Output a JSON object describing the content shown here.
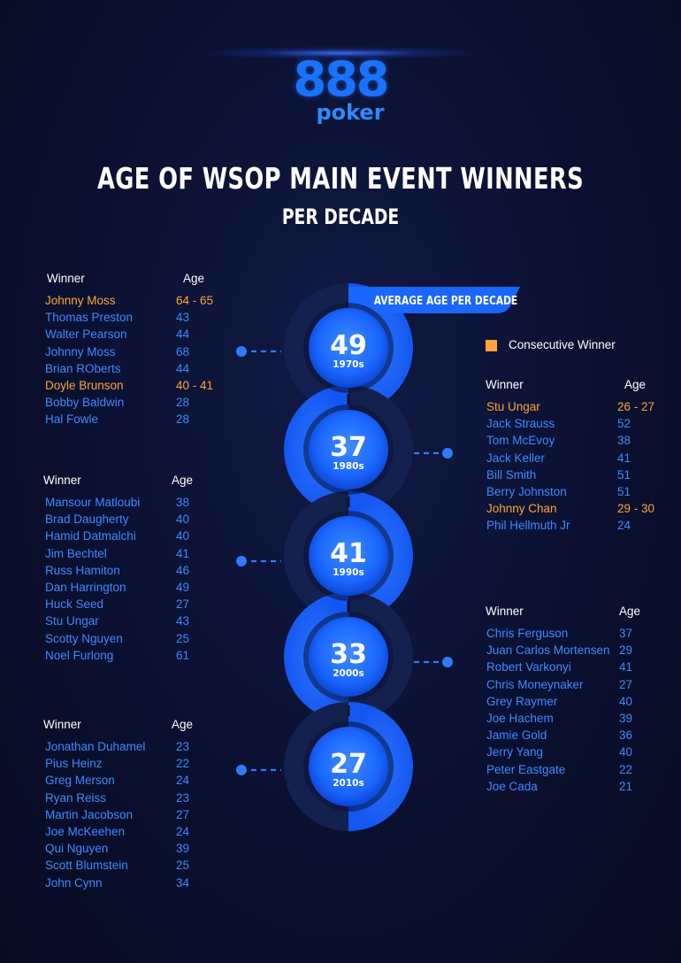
{
  "brand": {
    "logo_digits": "888",
    "logo_word": "poker"
  },
  "title": "AGE OF WSOP MAIN EVENT WINNERS",
  "subtitle": "PER DECADE",
  "legend": {
    "label": "Consecutive Winner",
    "color": "#ffa436"
  },
  "colors": {
    "background": "#0b1233",
    "accent": "#1a73ff",
    "name_text": "#3d8bff",
    "consecutive": "#ffa436"
  },
  "chart_data": {
    "type": "bar",
    "title": "AGE OF WSOP MAIN EVENT WINNERS",
    "subtitle": "PER DECADE",
    "series_label": "AVERAGE AGE PER DECADE",
    "categories": [
      "1970s",
      "1980s",
      "1990s",
      "2000s",
      "2010s"
    ],
    "values": [
      49,
      37,
      41,
      33,
      27
    ]
  },
  "tables": [
    {
      "decade": "1970s",
      "header_winner": "Winner",
      "header_age": "Age",
      "rows": [
        {
          "name": "Johnny Moss",
          "age": "64 - 65",
          "consecutive": true
        },
        {
          "name": "Thomas Preston",
          "age": "43",
          "consecutive": false
        },
        {
          "name": "Walter Pearson",
          "age": "44",
          "consecutive": false
        },
        {
          "name": "Johnny Moss",
          "age": "68",
          "consecutive": false
        },
        {
          "name": "Brian ROberts",
          "age": "44",
          "consecutive": false
        },
        {
          "name": "Doyle Brunson",
          "age": "40 - 41",
          "consecutive": true
        },
        {
          "name": "Bobby Baldwin",
          "age": "28",
          "consecutive": false
        },
        {
          "name": "Hal Fowle",
          "age": "28",
          "consecutive": false
        }
      ]
    },
    {
      "decade": "1980s",
      "header_winner": "Winner",
      "header_age": "Age",
      "rows": [
        {
          "name": "Stu Ungar",
          "age": "26 - 27",
          "consecutive": true
        },
        {
          "name": "Jack Strauss",
          "age": "52",
          "consecutive": false
        },
        {
          "name": "Tom McEvoy",
          "age": "38",
          "consecutive": false
        },
        {
          "name": "Jack Keller",
          "age": "41",
          "consecutive": false
        },
        {
          "name": "Bill Smith",
          "age": "51",
          "consecutive": false
        },
        {
          "name": "Berry Johnston",
          "age": "51",
          "consecutive": false
        },
        {
          "name": "Johnny Chan",
          "age": "29 - 30",
          "consecutive": true
        },
        {
          "name": "Phil Hellmuth Jr",
          "age": "24",
          "consecutive": false
        }
      ]
    },
    {
      "decade": "1990s",
      "header_winner": "Winner",
      "header_age": "Age",
      "rows": [
        {
          "name": "Mansour Matloubi",
          "age": "38",
          "consecutive": false
        },
        {
          "name": "Brad Daugherty",
          "age": "40",
          "consecutive": false
        },
        {
          "name": "Hamid Datmalchi",
          "age": "40",
          "consecutive": false
        },
        {
          "name": "Jim Bechtel",
          "age": "41",
          "consecutive": false
        },
        {
          "name": "Russ Hamiton",
          "age": "46",
          "consecutive": false
        },
        {
          "name": "Dan Harrington",
          "age": "49",
          "consecutive": false
        },
        {
          "name": "Huck Seed",
          "age": "27",
          "consecutive": false
        },
        {
          "name": "Stu Ungar",
          "age": "43",
          "consecutive": false
        },
        {
          "name": "Scotty Nguyen",
          "age": "25",
          "consecutive": false
        },
        {
          "name": "Noel Furlong",
          "age": "61",
          "consecutive": false
        }
      ]
    },
    {
      "decade": "2000s",
      "header_winner": "Winner",
      "header_age": "Age",
      "rows": [
        {
          "name": "Chris Ferguson",
          "age": "37",
          "consecutive": false
        },
        {
          "name": "Juan Carlos Mortensen",
          "age": "29",
          "consecutive": false
        },
        {
          "name": "Robert Varkonyi",
          "age": "41",
          "consecutive": false
        },
        {
          "name": "Chris Moneynaker",
          "age": "27",
          "consecutive": false
        },
        {
          "name": "Grey Raymer",
          "age": "40",
          "consecutive": false
        },
        {
          "name": "Joe Hachem",
          "age": "39",
          "consecutive": false
        },
        {
          "name": "Jamie Gold",
          "age": "36",
          "consecutive": false
        },
        {
          "name": "Jerry Yang",
          "age": "40",
          "consecutive": false
        },
        {
          "name": "Peter Eastgate",
          "age": "22",
          "consecutive": false
        },
        {
          "name": "Joe Cada",
          "age": "21",
          "consecutive": false
        }
      ]
    },
    {
      "decade": "2010s",
      "header_winner": "Winner",
      "header_age": "Age",
      "rows": [
        {
          "name": "Jonathan Duhamel",
          "age": "23",
          "consecutive": false
        },
        {
          "name": "Pius Heinz",
          "age": "22",
          "consecutive": false
        },
        {
          "name": "Greg Merson",
          "age": "24",
          "consecutive": false
        },
        {
          "name": "Ryan Reiss",
          "age": "23",
          "consecutive": false
        },
        {
          "name": "Martin Jacobson",
          "age": "27",
          "consecutive": false
        },
        {
          "name": "Joe McKeehen",
          "age": "24",
          "consecutive": false
        },
        {
          "name": "Qui Nguyen",
          "age": "39",
          "consecutive": false
        },
        {
          "name": "Scott Blumstein",
          "age": "25",
          "consecutive": false
        },
        {
          "name": "John Cynn",
          "age": "34",
          "consecutive": false
        }
      ]
    }
  ]
}
